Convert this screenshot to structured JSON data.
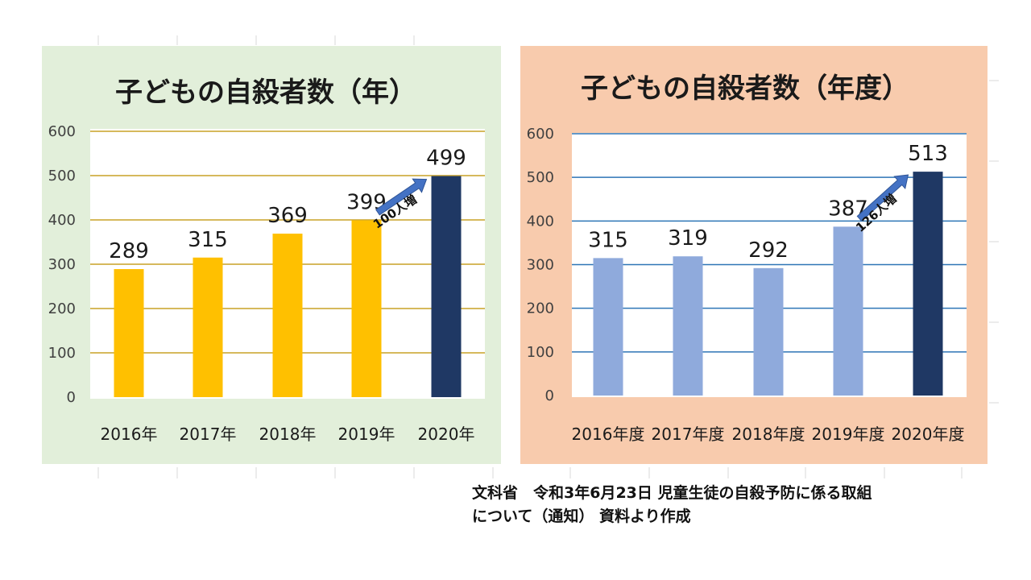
{
  "chart_data": [
    {
      "type": "bar",
      "title": "子どもの自殺者数（年）",
      "categories": [
        "2016年",
        "2017年",
        "2018年",
        "2019年",
        "2020年"
      ],
      "values": [
        289,
        315,
        369,
        399,
        499
      ],
      "data_labels": [
        "289",
        "315",
        "369",
        "399",
        "499"
      ],
      "ylim": [
        0,
        600
      ],
      "yticks": [
        "0",
        "100",
        "200",
        "300",
        "400",
        "500",
        "600"
      ],
      "grid": true,
      "bar_colors": [
        "#FFC000",
        "#FFC000",
        "#FFC000",
        "#FFC000",
        "#1F3864"
      ],
      "gridline_color": "#C9A227",
      "panel_color": "#E2EFDA",
      "annotation": {
        "text": "100人増",
        "from_category": "2019年",
        "to_category": "2020年"
      }
    },
    {
      "type": "bar",
      "title": "子どもの自殺者数（年度）",
      "categories": [
        "2016年度",
        "2017年度",
        "2018年度",
        "2019年度",
        "2020年度"
      ],
      "values": [
        315,
        319,
        292,
        387,
        513
      ],
      "data_labels": [
        "315",
        "319",
        "292",
        "387",
        "513"
      ],
      "ylim": [
        0,
        600
      ],
      "yticks": [
        "0",
        "100",
        "200",
        "300",
        "400",
        "500",
        "600"
      ],
      "grid": true,
      "bar_colors": [
        "#8FAADC",
        "#8FAADC",
        "#8FAADC",
        "#8FAADC",
        "#1F3864"
      ],
      "gridline_color": "#2E75B6",
      "panel_color": "#F8CBAD",
      "annotation": {
        "text": "126人増",
        "from_category": "2019年度",
        "to_category": "2020年度"
      }
    }
  ],
  "source_note": {
    "line1": "文科省　令和3年6月23日 児童生徒の自殺予防に係る取組",
    "line2": "について（通知） 資料より作成"
  }
}
